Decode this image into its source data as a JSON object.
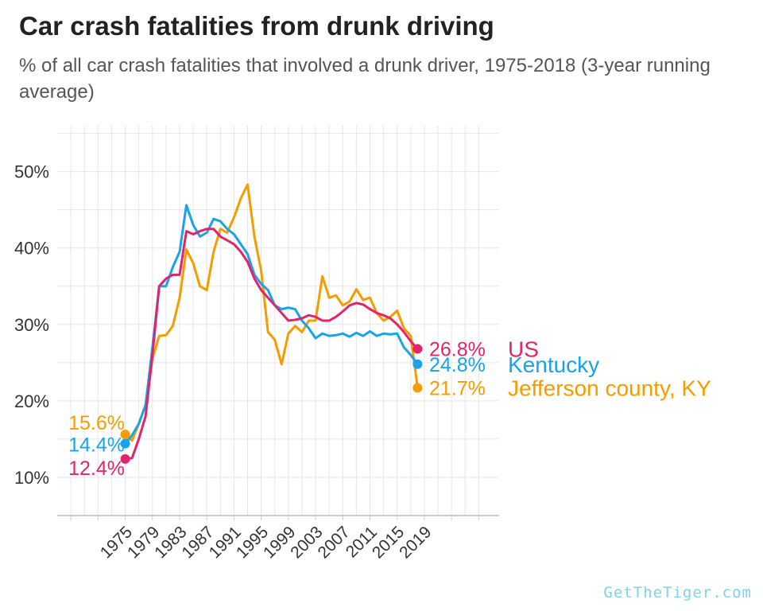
{
  "header": {
    "title": "Car crash fatalities from drunk driving",
    "subtitle": "% of all car crash fatalities that involved a drunk driver, 1975-2018 (3-year running average)"
  },
  "watermark": {
    "text": "GetTheTiger.com",
    "color": "#7fd1f2"
  },
  "chart_data": {
    "type": "line",
    "title": "Car crash fatalities from drunk driving",
    "subtitle": "% of all car crash fatalities that involved a drunk driver, 1975-2018 (3-year running average)",
    "xlabel": "",
    "ylabel": "",
    "xlim": [
      1965,
      2030
    ],
    "ylim": [
      5,
      56
    ],
    "x_ticks": [
      1975,
      1979,
      1983,
      1987,
      1991,
      1995,
      1999,
      2003,
      2007,
      2011,
      2015,
      2019
    ],
    "y_ticks": [
      10,
      20,
      30,
      40,
      50
    ],
    "y_tick_labels": [
      "10%",
      "20%",
      "30%",
      "40%",
      "50%"
    ],
    "grid": true,
    "legend": "direct labels at line ends",
    "x": [
      1975,
      1976,
      1977,
      1978,
      1979,
      1980,
      1981,
      1982,
      1983,
      1984,
      1985,
      1986,
      1987,
      1988,
      1989,
      1990,
      1991,
      1992,
      1993,
      1994,
      1995,
      1996,
      1997,
      1998,
      1999,
      2000,
      2001,
      2002,
      2003,
      2004,
      2005,
      2006,
      2007,
      2008,
      2009,
      2010,
      2011,
      2012,
      2013,
      2014,
      2015,
      2016,
      2017,
      2018
    ],
    "series": [
      {
        "name": "Jefferson county, KY",
        "color": "#f59c00",
        "start_label": "15.6%",
        "end_label": "21.7%",
        "values": [
          15.6,
          14.8,
          17.0,
          19.5,
          25.5,
          28.5,
          28.6,
          29.8,
          33.5,
          39.8,
          38.0,
          35.0,
          34.5,
          39.5,
          42.5,
          42.0,
          44.0,
          46.5,
          48.3,
          41.5,
          37.0,
          29.0,
          28.0,
          24.8,
          28.8,
          29.8,
          29.0,
          30.5,
          30.5,
          36.3,
          33.5,
          33.8,
          32.5,
          33.0,
          34.6,
          33.2,
          33.5,
          31.5,
          30.5,
          31.0,
          31.8,
          29.5,
          28.5,
          21.7
        ]
      },
      {
        "name": "Kentucky",
        "color": "#1aa3e8",
        "start_label": "14.4%",
        "end_label": "24.8%",
        "values": [
          14.4,
          15.5,
          17.0,
          19.5,
          27.0,
          35.0,
          35.0,
          37.5,
          39.5,
          45.6,
          43.0,
          41.5,
          42.0,
          43.8,
          43.5,
          42.5,
          41.8,
          40.5,
          39.2,
          36.5,
          35.3,
          34.5,
          32.5,
          32.0,
          32.2,
          32.0,
          30.5,
          29.5,
          28.2,
          28.8,
          28.5,
          28.6,
          28.8,
          28.4,
          28.9,
          28.5,
          29.1,
          28.5,
          28.8,
          28.7,
          28.8,
          27.0,
          26.0,
          24.8
        ]
      },
      {
        "name": "US",
        "color": "#e2246b",
        "start_label": "12.4%",
        "end_label": "26.8%",
        "values": [
          12.4,
          12.5,
          15.0,
          18.0,
          26.0,
          35.0,
          36.0,
          36.5,
          36.5,
          42.2,
          41.8,
          42.2,
          42.5,
          42.5,
          41.5,
          41.0,
          40.5,
          39.5,
          38.2,
          36.0,
          34.5,
          33.5,
          32.5,
          31.5,
          30.5,
          30.6,
          30.8,
          31.2,
          31.0,
          30.5,
          30.5,
          31.0,
          31.7,
          32.5,
          32.8,
          32.6,
          32.0,
          31.5,
          31.2,
          30.8,
          30.0,
          29.0,
          27.8,
          26.8
        ]
      }
    ]
  }
}
